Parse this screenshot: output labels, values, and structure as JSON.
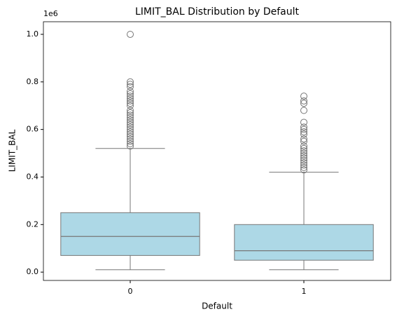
{
  "chart_data": {
    "type": "box",
    "title": "LIMIT_BAL Distribution by Default",
    "xlabel": "Default",
    "ylabel": "LIMIT_BAL",
    "offset_label": "1e6",
    "categories": [
      "0",
      "1"
    ],
    "color": "#add8e6",
    "line_color": "#777777",
    "boxes": [
      {
        "min": 0.01,
        "q1": 0.07,
        "median": 0.15,
        "q3": 0.25,
        "max": 0.52,
        "outliers": [
          1.0,
          0.8,
          0.79,
          0.78,
          0.76,
          0.75,
          0.74,
          0.73,
          0.72,
          0.71,
          0.7,
          0.68,
          0.67,
          0.66,
          0.65,
          0.64,
          0.63,
          0.62,
          0.61,
          0.6,
          0.59,
          0.58,
          0.57,
          0.56,
          0.55,
          0.54,
          0.53
        ]
      },
      {
        "min": 0.01,
        "q1": 0.05,
        "median": 0.09,
        "q3": 0.2,
        "max": 0.42,
        "outliers": [
          0.74,
          0.72,
          0.71,
          0.68,
          0.63,
          0.61,
          0.6,
          0.59,
          0.58,
          0.56,
          0.55,
          0.53,
          0.52,
          0.51,
          0.5,
          0.49,
          0.48,
          0.47,
          0.46,
          0.45,
          0.44,
          0.43
        ]
      }
    ],
    "ylim": [
      -0.035,
      1.053
    ],
    "yticks": [
      {
        "value": 0,
        "label": "0.0"
      },
      0.2,
      0.4,
      0.6,
      0.8,
      {
        "value": 1,
        "label": "1.0"
      }
    ]
  }
}
